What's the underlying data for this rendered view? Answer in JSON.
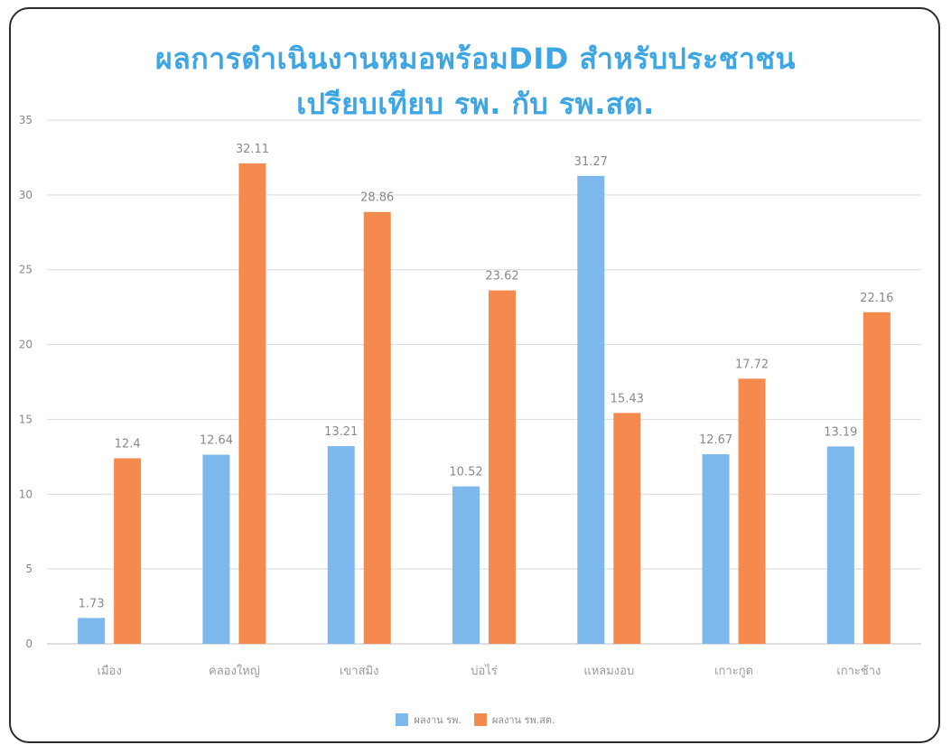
{
  "title_line1": "ผลการดำเนินงานหมอพร้อมDID สำหรับประชาชน",
  "title_line2": "เปรียบเทียบ รพ. กับ รพ.สต.",
  "colors": {
    "series1": "#7db8ec",
    "series2": "#f58a4e",
    "title": "#3da6e3",
    "grid": "#d9d9d9"
  },
  "chart_data": {
    "type": "bar",
    "categories": [
      "เมือง",
      "คลองใหญ่",
      "เขาสมิง",
      "บ่อไร่",
      "แหลมงอบ",
      "เกาะกูด",
      "เกาะช้าง"
    ],
    "series": [
      {
        "name": "ผลงาน รพ.",
        "values": [
          1.73,
          12.64,
          13.21,
          10.52,
          31.27,
          12.67,
          13.19
        ]
      },
      {
        "name": "ผลงาน รพ.สต.",
        "values": [
          12.4,
          32.11,
          28.86,
          23.62,
          15.43,
          17.72,
          22.16
        ]
      }
    ],
    "ylim": [
      0,
      35
    ],
    "yticks": [
      0,
      5,
      10,
      15,
      20,
      25,
      30,
      35
    ],
    "grid": true,
    "legend": "bottom-center",
    "data_labels": true
  }
}
